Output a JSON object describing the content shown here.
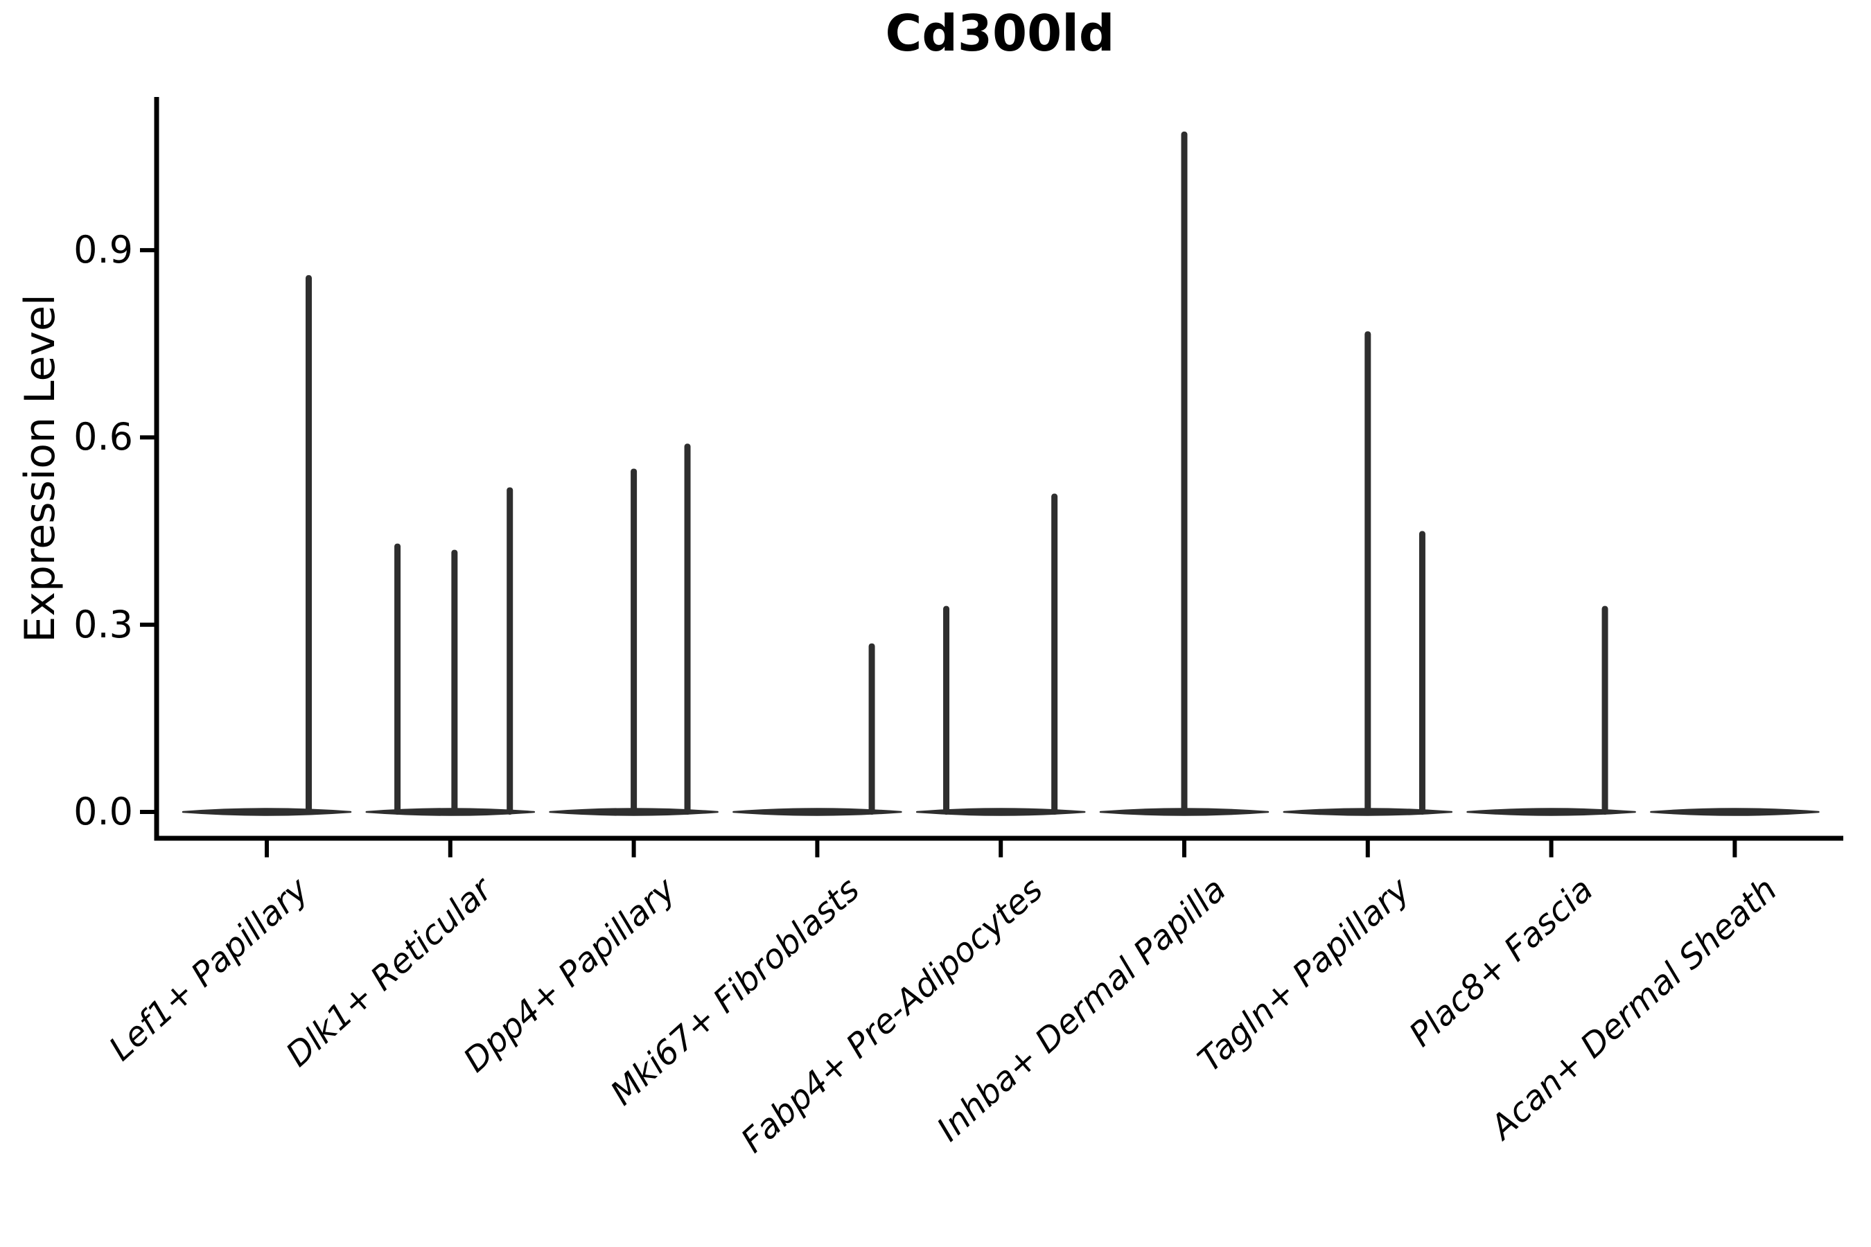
{
  "figure": {
    "title": "Cd300ld",
    "y_axis_label": "Expression Level"
  },
  "colors": {
    "background": "#ffffff",
    "axis": "#000000",
    "violin": "#2e2e2e",
    "text": "#000000"
  },
  "chart_data": {
    "type": "violin",
    "title": "Cd300ld",
    "xlabel": "",
    "ylabel": "Expression Level",
    "ylim": [
      0,
      1.145
    ],
    "yticks": [
      0.0,
      0.3,
      0.6,
      0.9
    ],
    "ytick_labels": [
      "0.0",
      "0.3",
      "0.6",
      "0.9"
    ],
    "grid": false,
    "legend": false,
    "categories": [
      "Lef1+ Papillary",
      "Dlk1+ Reticular",
      "Dpp4+ Papillary",
      "Mki67+ Fibroblasts",
      "Fabp4+ Pre-Adipocytes",
      "Inhba+ Dermal Papilla",
      "Tagln+ Papillary",
      "Plac8+ Fascia",
      "Acan+ Dermal Sheath"
    ],
    "series": [
      {
        "name": "Lef1+ Papillary",
        "baseline_value": 0.0,
        "spikes": [
          {
            "offset": 0.5,
            "value": 0.86
          }
        ]
      },
      {
        "name": "Dlk1+ Reticular",
        "baseline_value": 0.0,
        "spikes": [
          {
            "offset": -0.63,
            "value": 0.43
          },
          {
            "offset": 0.05,
            "value": 0.42
          },
          {
            "offset": 0.71,
            "value": 0.52
          }
        ]
      },
      {
        "name": "Dpp4+ Papillary",
        "baseline_value": 0.0,
        "spikes": [
          {
            "offset": 0.0,
            "value": 0.55
          },
          {
            "offset": 0.64,
            "value": 0.59
          }
        ]
      },
      {
        "name": "Mki67+ Fibroblasts",
        "baseline_value": 0.0,
        "spikes": [
          {
            "offset": 0.65,
            "value": 0.27
          }
        ]
      },
      {
        "name": "Fabp4+ Pre-Adipocytes",
        "baseline_value": 0.0,
        "spikes": [
          {
            "offset": -0.65,
            "value": 0.33
          },
          {
            "offset": 0.64,
            "value": 0.51
          }
        ]
      },
      {
        "name": "Inhba+ Dermal Papilla",
        "baseline_value": 0.0,
        "spikes": [
          {
            "offset": 0.0,
            "value": 1.09
          }
        ]
      },
      {
        "name": "Tagln+ Papillary",
        "baseline_value": 0.0,
        "spikes": [
          {
            "offset": 0.0,
            "value": 0.77
          },
          {
            "offset": 0.65,
            "value": 0.45
          }
        ]
      },
      {
        "name": "Plac8+ Fascia",
        "baseline_value": 0.0,
        "spikes": [
          {
            "offset": 0.64,
            "value": 0.33
          }
        ]
      },
      {
        "name": "Acan+ Dermal Sheath",
        "baseline_value": 0.0,
        "spikes": []
      }
    ]
  }
}
